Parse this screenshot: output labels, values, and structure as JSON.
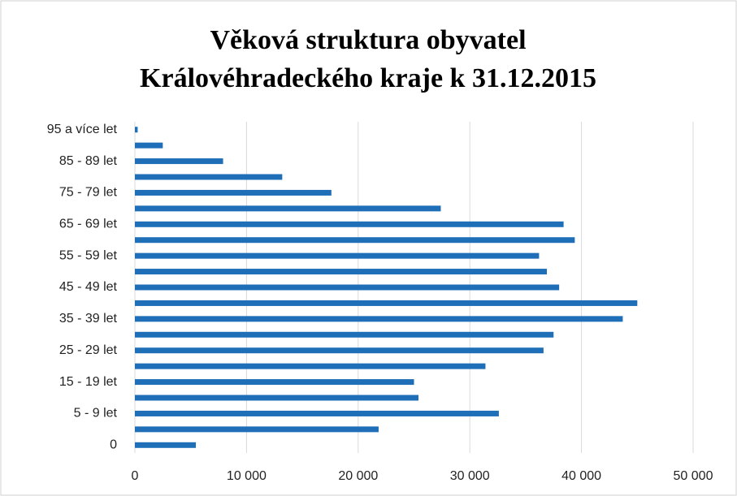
{
  "chart_data": {
    "type": "barh",
    "title": [
      "Věková struktura obyvatel",
      "Královéhradeckého kraje k 31.12.2015"
    ],
    "categories": [
      "0",
      null,
      "5 - 9 let",
      null,
      "15 - 19 let",
      null,
      "25 - 29 let",
      null,
      "35 - 39 let",
      null,
      "45 - 49 let",
      null,
      "55 -  59 let",
      null,
      "65 - 69 let",
      null,
      "75 - 79 let",
      null,
      "85 - 89 let",
      null,
      "95 a více let"
    ],
    "values": [
      5460,
      21830,
      32600,
      25400,
      25000,
      31400,
      36600,
      37500,
      43700,
      45000,
      38000,
      36900,
      36200,
      39400,
      38400,
      27400,
      17600,
      13200,
      7900,
      2500,
      250
    ],
    "color": "#1f6fb8",
    "xlim": [
      0,
      50000
    ],
    "xticks": [
      0,
      {
        "value": 10000,
        "label": "10 000"
      },
      {
        "value": 20000,
        "label": "20 000"
      },
      {
        "value": 30000,
        "label": "30 000"
      },
      {
        "value": 40000,
        "label": "40 000"
      },
      {
        "value": 50000,
        "label": "50 000"
      }
    ],
    "grid": true
  }
}
